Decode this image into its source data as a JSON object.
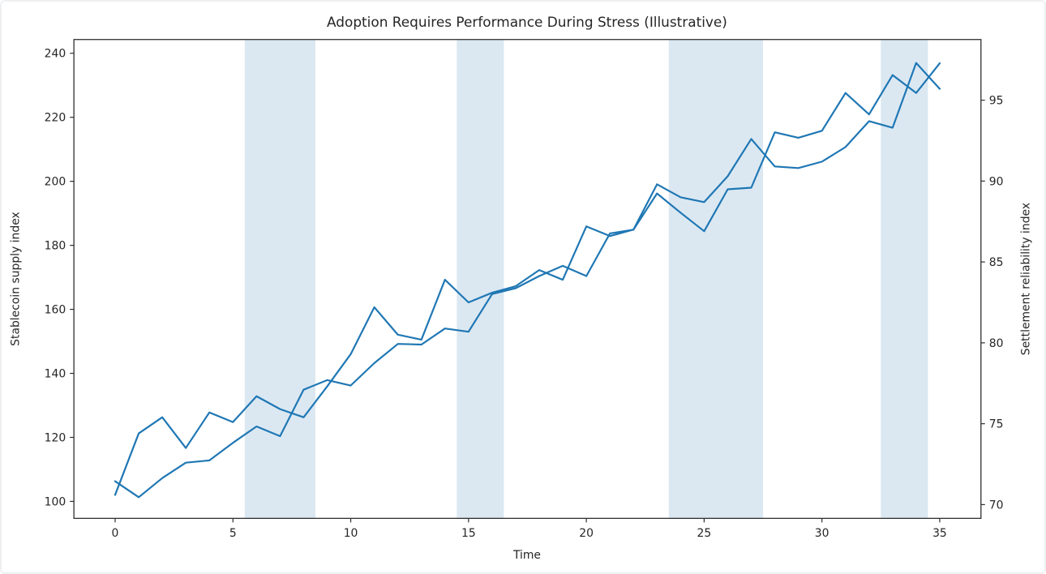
{
  "figure": {
    "background": "#ffffff",
    "frame_color": "#eef0f2"
  },
  "chart_data": {
    "type": "line",
    "title": "Adoption Requires Performance During Stress (Illustrative)",
    "xlabel": "Time",
    "x_ticks": [
      0,
      5,
      10,
      15,
      20,
      25,
      30,
      35
    ],
    "xlim": [
      -1.75,
      36.75
    ],
    "x": [
      0,
      1,
      2,
      3,
      4,
      5,
      6,
      7,
      8,
      9,
      10,
      11,
      12,
      13,
      14,
      15,
      16,
      17,
      18,
      19,
      20,
      21,
      22,
      23,
      24,
      25,
      26,
      27,
      28,
      29,
      30,
      31,
      32,
      33,
      34,
      35
    ],
    "series": [
      {
        "name": "Stablecoin supply index",
        "axis": "left",
        "values": [
          106.3,
          101.3,
          107.3,
          112.1,
          112.8,
          118.3,
          123.4,
          120.4,
          134.9,
          137.9,
          136.2,
          143.2,
          149.2,
          149.0,
          154.0,
          153.0,
          164.8,
          166.6,
          170.4,
          173.6,
          170.4,
          183.7,
          184.9,
          196.2,
          190.2,
          184.4,
          197.5,
          198.0,
          215.3,
          213.6,
          215.8,
          227.6,
          220.9,
          233.2,
          227.6,
          236.9
        ]
      },
      {
        "name": "Settlement reliability index",
        "axis": "right",
        "values": [
          70.6,
          74.4,
          75.4,
          73.5,
          75.7,
          75.1,
          76.7,
          75.9,
          75.4,
          77.3,
          79.3,
          82.2,
          80.5,
          80.2,
          83.9,
          82.5,
          83.1,
          83.5,
          84.5,
          83.9,
          87.2,
          86.6,
          87.0,
          89.8,
          89.0,
          88.7,
          90.3,
          92.6,
          90.9,
          90.8,
          91.2,
          92.1,
          93.7,
          93.3,
          97.3,
          95.7
        ]
      }
    ],
    "left_axis": {
      "label": "Stablecoin supply index",
      "ticks": [
        100,
        120,
        140,
        160,
        180,
        200,
        220,
        240
      ],
      "ylim": [
        94.7,
        244.3
      ]
    },
    "right_axis": {
      "label": "Settlement reliability index",
      "ticks": [
        70,
        75,
        80,
        85,
        90,
        95
      ],
      "ylim": [
        69.15,
        98.75
      ]
    },
    "stress_bands": {
      "intervals": [
        [
          5.5,
          8.5
        ],
        [
          14.5,
          16.5
        ],
        [
          23.5,
          27.5
        ],
        [
          32.5,
          34.5
        ]
      ]
    },
    "legend": "none",
    "grid": "off",
    "colors": {
      "line": "#1f77b4",
      "band": "#dbe8f2",
      "spine": "#2e2e2e",
      "text": "#262626"
    }
  }
}
